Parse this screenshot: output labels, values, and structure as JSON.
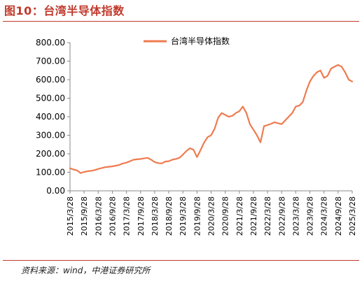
{
  "header": {
    "title": "图10：台湾半导体指数"
  },
  "footer": {
    "source": "资料来源：wind，中港证券研究所"
  },
  "colors": {
    "accent": "#c0392b",
    "series": "#ef7b4f"
  },
  "chart_data": {
    "type": "line",
    "title": "",
    "xlabel": "",
    "ylabel": "",
    "ylim": [
      0,
      800
    ],
    "yticks": [
      "0.00",
      "100.00",
      "200.00",
      "300.00",
      "400.00",
      "500.00",
      "600.00",
      "700.00",
      "800.00"
    ],
    "xticks": [
      "2015/3/28",
      "2015/9/28",
      "2016/3/28",
      "2016/9/28",
      "2017/3/28",
      "2017/9/28",
      "2018/3/28",
      "2018/9/28",
      "2019/3/28",
      "2019/9/28",
      "2020/3/28",
      "2020/9/28",
      "2021/3/28",
      "2021/9/28",
      "2022/3/28",
      "2022/9/28",
      "2023/3/28",
      "2023/9/28",
      "2024/3/28",
      "2024/9/28",
      "2025/3/28"
    ],
    "legend_position": "top-center",
    "grid": false,
    "series": [
      {
        "name": "台湾半导体指数",
        "x": [
          0,
          0.25,
          0.5,
          0.75,
          1,
          1.25,
          1.5,
          1.75,
          2,
          2.25,
          2.5,
          2.75,
          3,
          3.25,
          3.5,
          3.75,
          4,
          4.25,
          4.5,
          4.75,
          5,
          5.25,
          5.5,
          5.75,
          6,
          6.25,
          6.5,
          6.75,
          7,
          7.25,
          7.5,
          7.75,
          8,
          8.25,
          8.5,
          8.75,
          9,
          9.25,
          9.5,
          9.75,
          10,
          10.25,
          10.5,
          10.75,
          11,
          11.25,
          11.5,
          11.75,
          12,
          12.25,
          12.5,
          12.75,
          13,
          13.25,
          13.5,
          13.75,
          14,
          14.25,
          14.5,
          14.75,
          15,
          15.25,
          15.5,
          15.75,
          16,
          16.25,
          16.5,
          16.75,
          17,
          17.25,
          17.5,
          17.75,
          18,
          18.25,
          18.5,
          18.75,
          19,
          19.25,
          19.5,
          19.75,
          20
        ],
        "y": [
          122,
          115,
          110,
          96,
          102,
          106,
          108,
          112,
          118,
          123,
          128,
          130,
          132,
          136,
          140,
          148,
          152,
          160,
          168,
          170,
          172,
          175,
          178,
          168,
          155,
          150,
          148,
          158,
          160,
          168,
          172,
          178,
          195,
          215,
          230,
          222,
          182,
          220,
          260,
          290,
          300,
          335,
          395,
          420,
          410,
          400,
          405,
          420,
          430,
          455,
          420,
          360,
          330,
          300,
          262,
          350,
          355,
          362,
          370,
          365,
          360,
          380,
          400,
          420,
          455,
          460,
          480,
          540,
          590,
          620,
          640,
          650,
          610,
          620,
          660,
          670,
          680,
          670,
          640,
          600,
          590
        ]
      }
    ]
  }
}
